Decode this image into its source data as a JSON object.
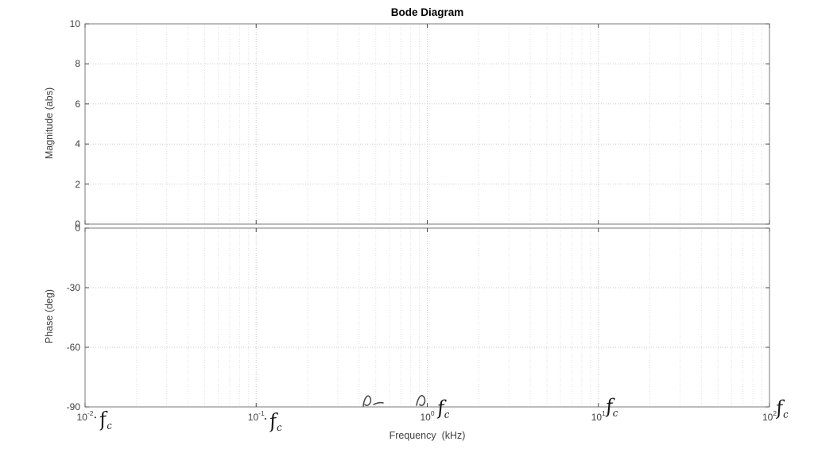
{
  "figure": {
    "title": "Bode Diagram",
    "xlabel": "Frequency  (kHz)"
  },
  "chart_data": [
    {
      "type": "line",
      "panel": "magnitude",
      "title": "Bode Diagram",
      "ylabel": "Magnitude (abs)",
      "xscale": "log",
      "xlim": [
        0.01,
        100
      ],
      "ylim": [
        0,
        10
      ],
      "yticks": [
        0,
        2,
        4,
        6,
        8,
        10
      ],
      "ytick_labels": [
        "0",
        "2",
        "4",
        "6",
        "8",
        "10"
      ],
      "xticks": [
        0.01,
        0.1,
        1,
        10,
        100
      ],
      "grid": true,
      "minor_grid": true,
      "legend": false,
      "series": []
    },
    {
      "type": "line",
      "panel": "phase",
      "ylabel": "Phase (deg)",
      "xlabel": "Frequency  (kHz)",
      "xscale": "log",
      "xlim": [
        0.01,
        100
      ],
      "ylim": [
        -90,
        0
      ],
      "yticks": [
        -90,
        -60,
        -30,
        0
      ],
      "ytick_labels": [
        "-90",
        "-60",
        "-30",
        "0"
      ],
      "xticks": [
        0.01,
        0.1,
        1,
        10,
        100
      ],
      "xtick_labels": [
        {
          "base": "10",
          "exp": "-2"
        },
        {
          "base": "10",
          "exp": "-1"
        },
        {
          "base": "10",
          "exp": "0"
        },
        {
          "base": "10",
          "exp": "1"
        },
        {
          "base": "10",
          "exp": "2"
        }
      ],
      "grid": true,
      "minor_grid": true,
      "legend": false,
      "series": []
    }
  ],
  "annotations": [
    {
      "prefix": "·",
      "label": "f",
      "sub": "c",
      "tick": 0,
      "note": "handwritten fc at 10^-2"
    },
    {
      "prefix": "·",
      "label": "f",
      "sub": "c",
      "tick": 1,
      "note": "handwritten fc at 10^-1"
    },
    {
      "prefix": "",
      "label": "f",
      "sub": "c",
      "tick": 2,
      "note": "handwritten fc at 10^0"
    },
    {
      "prefix": "",
      "label": "f",
      "sub": "c",
      "tick": 3,
      "note": "handwritten fc at 10^1"
    },
    {
      "prefix": "",
      "label": "f",
      "sub": "c",
      "tick": 4,
      "note": "handwritten fc at 10^2"
    }
  ],
  "colors": {
    "box": "#7a7a7a",
    "tick": "#4a4a4a",
    "grid_major": "#c9c9c9",
    "grid_minor": "#e0e0e0",
    "label": "#3f3f3f",
    "ink": "#141414"
  }
}
